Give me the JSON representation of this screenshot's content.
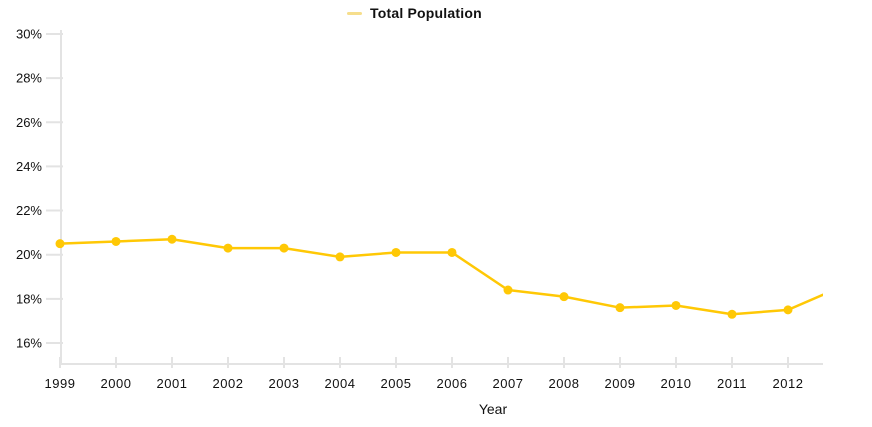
{
  "chart_data": {
    "type": "line",
    "title": "",
    "xlabel": "Year",
    "ylabel": "",
    "ylim": [
      16,
      30
    ],
    "grid": false,
    "legend_position": "top-center",
    "ytick_suffix": "%",
    "yticks": [
      30,
      28,
      26,
      24,
      22,
      20,
      18,
      16
    ],
    "x": [
      1999,
      2000,
      2001,
      2002,
      2003,
      2004,
      2005,
      2006,
      2007,
      2008,
      2009,
      2010,
      2011,
      2012
    ],
    "series": [
      {
        "name": "Total Population",
        "color": "#FFC805",
        "values": [
          20.5,
          20.6,
          20.7,
          20.3,
          20.3,
          19.9,
          20.1,
          20.1,
          18.4,
          18.1,
          17.6,
          17.7,
          17.3,
          17.5
        ],
        "partial_next_point": {
          "x": 2013,
          "value": 18.6,
          "clipped_at_plot_edge": true
        }
      }
    ],
    "colors": {
      "line": "#FFC805",
      "point": "#FFC805",
      "legend_swatch": "#F6DE8C",
      "axis": "#E3E3E3",
      "text": "#111111"
    }
  }
}
